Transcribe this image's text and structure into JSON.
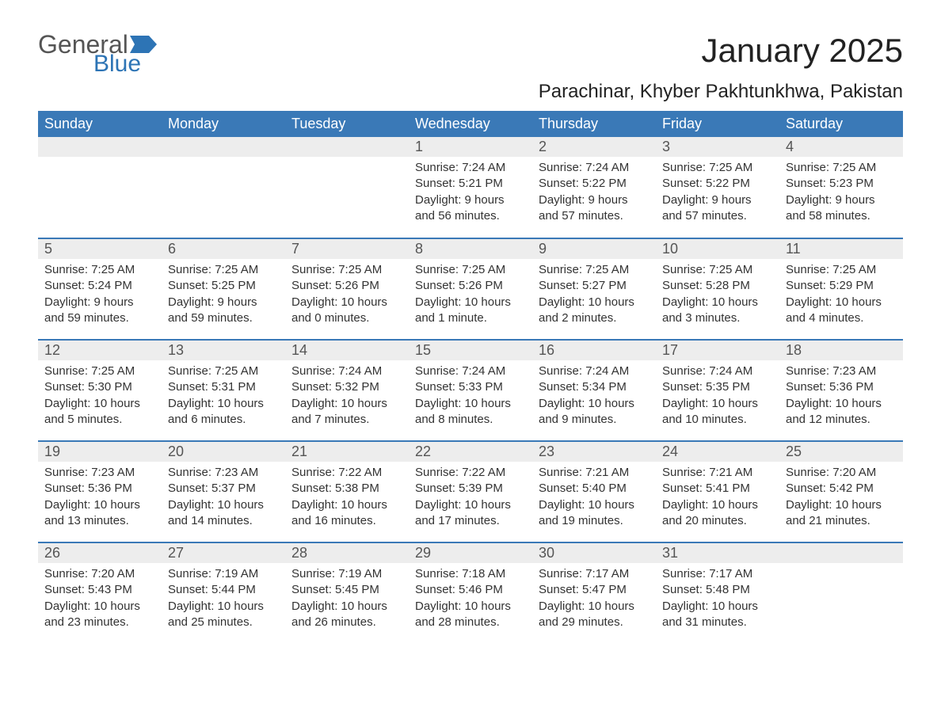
{
  "brand": {
    "word1": "General",
    "word2": "Blue",
    "flag_color": "#2d74b5"
  },
  "title": "January 2025",
  "location": "Parachinar, Khyber Pakhtunkhwa, Pakistan",
  "colors": {
    "header_bg": "#3a79b7",
    "header_text": "#ffffff",
    "daynum_bg": "#ededed",
    "daynum_text": "#555555",
    "body_text": "#333333",
    "border": "#3a79b7",
    "page_bg": "#ffffff"
  },
  "typography": {
    "title_size_pt": 32,
    "location_size_pt": 18,
    "header_size_pt": 14,
    "daynum_size_pt": 14,
    "body_size_pt": 11
  },
  "day_headers": [
    "Sunday",
    "Monday",
    "Tuesday",
    "Wednesday",
    "Thursday",
    "Friday",
    "Saturday"
  ],
  "weeks": [
    [
      null,
      null,
      null,
      {
        "n": "1",
        "sr": "Sunrise: 7:24 AM",
        "ss": "Sunset: 5:21 PM",
        "dl": "Daylight: 9 hours and 56 minutes."
      },
      {
        "n": "2",
        "sr": "Sunrise: 7:24 AM",
        "ss": "Sunset: 5:22 PM",
        "dl": "Daylight: 9 hours and 57 minutes."
      },
      {
        "n": "3",
        "sr": "Sunrise: 7:25 AM",
        "ss": "Sunset: 5:22 PM",
        "dl": "Daylight: 9 hours and 57 minutes."
      },
      {
        "n": "4",
        "sr": "Sunrise: 7:25 AM",
        "ss": "Sunset: 5:23 PM",
        "dl": "Daylight: 9 hours and 58 minutes."
      }
    ],
    [
      {
        "n": "5",
        "sr": "Sunrise: 7:25 AM",
        "ss": "Sunset: 5:24 PM",
        "dl": "Daylight: 9 hours and 59 minutes."
      },
      {
        "n": "6",
        "sr": "Sunrise: 7:25 AM",
        "ss": "Sunset: 5:25 PM",
        "dl": "Daylight: 9 hours and 59 minutes."
      },
      {
        "n": "7",
        "sr": "Sunrise: 7:25 AM",
        "ss": "Sunset: 5:26 PM",
        "dl": "Daylight: 10 hours and 0 minutes."
      },
      {
        "n": "8",
        "sr": "Sunrise: 7:25 AM",
        "ss": "Sunset: 5:26 PM",
        "dl": "Daylight: 10 hours and 1 minute."
      },
      {
        "n": "9",
        "sr": "Sunrise: 7:25 AM",
        "ss": "Sunset: 5:27 PM",
        "dl": "Daylight: 10 hours and 2 minutes."
      },
      {
        "n": "10",
        "sr": "Sunrise: 7:25 AM",
        "ss": "Sunset: 5:28 PM",
        "dl": "Daylight: 10 hours and 3 minutes."
      },
      {
        "n": "11",
        "sr": "Sunrise: 7:25 AM",
        "ss": "Sunset: 5:29 PM",
        "dl": "Daylight: 10 hours and 4 minutes."
      }
    ],
    [
      {
        "n": "12",
        "sr": "Sunrise: 7:25 AM",
        "ss": "Sunset: 5:30 PM",
        "dl": "Daylight: 10 hours and 5 minutes."
      },
      {
        "n": "13",
        "sr": "Sunrise: 7:25 AM",
        "ss": "Sunset: 5:31 PM",
        "dl": "Daylight: 10 hours and 6 minutes."
      },
      {
        "n": "14",
        "sr": "Sunrise: 7:24 AM",
        "ss": "Sunset: 5:32 PM",
        "dl": "Daylight: 10 hours and 7 minutes."
      },
      {
        "n": "15",
        "sr": "Sunrise: 7:24 AM",
        "ss": "Sunset: 5:33 PM",
        "dl": "Daylight: 10 hours and 8 minutes."
      },
      {
        "n": "16",
        "sr": "Sunrise: 7:24 AM",
        "ss": "Sunset: 5:34 PM",
        "dl": "Daylight: 10 hours and 9 minutes."
      },
      {
        "n": "17",
        "sr": "Sunrise: 7:24 AM",
        "ss": "Sunset: 5:35 PM",
        "dl": "Daylight: 10 hours and 10 minutes."
      },
      {
        "n": "18",
        "sr": "Sunrise: 7:23 AM",
        "ss": "Sunset: 5:36 PM",
        "dl": "Daylight: 10 hours and 12 minutes."
      }
    ],
    [
      {
        "n": "19",
        "sr": "Sunrise: 7:23 AM",
        "ss": "Sunset: 5:36 PM",
        "dl": "Daylight: 10 hours and 13 minutes."
      },
      {
        "n": "20",
        "sr": "Sunrise: 7:23 AM",
        "ss": "Sunset: 5:37 PM",
        "dl": "Daylight: 10 hours and 14 minutes."
      },
      {
        "n": "21",
        "sr": "Sunrise: 7:22 AM",
        "ss": "Sunset: 5:38 PM",
        "dl": "Daylight: 10 hours and 16 minutes."
      },
      {
        "n": "22",
        "sr": "Sunrise: 7:22 AM",
        "ss": "Sunset: 5:39 PM",
        "dl": "Daylight: 10 hours and 17 minutes."
      },
      {
        "n": "23",
        "sr": "Sunrise: 7:21 AM",
        "ss": "Sunset: 5:40 PM",
        "dl": "Daylight: 10 hours and 19 minutes."
      },
      {
        "n": "24",
        "sr": "Sunrise: 7:21 AM",
        "ss": "Sunset: 5:41 PM",
        "dl": "Daylight: 10 hours and 20 minutes."
      },
      {
        "n": "25",
        "sr": "Sunrise: 7:20 AM",
        "ss": "Sunset: 5:42 PM",
        "dl": "Daylight: 10 hours and 21 minutes."
      }
    ],
    [
      {
        "n": "26",
        "sr": "Sunrise: 7:20 AM",
        "ss": "Sunset: 5:43 PM",
        "dl": "Daylight: 10 hours and 23 minutes."
      },
      {
        "n": "27",
        "sr": "Sunrise: 7:19 AM",
        "ss": "Sunset: 5:44 PM",
        "dl": "Daylight: 10 hours and 25 minutes."
      },
      {
        "n": "28",
        "sr": "Sunrise: 7:19 AM",
        "ss": "Sunset: 5:45 PM",
        "dl": "Daylight: 10 hours and 26 minutes."
      },
      {
        "n": "29",
        "sr": "Sunrise: 7:18 AM",
        "ss": "Sunset: 5:46 PM",
        "dl": "Daylight: 10 hours and 28 minutes."
      },
      {
        "n": "30",
        "sr": "Sunrise: 7:17 AM",
        "ss": "Sunset: 5:47 PM",
        "dl": "Daylight: 10 hours and 29 minutes."
      },
      {
        "n": "31",
        "sr": "Sunrise: 7:17 AM",
        "ss": "Sunset: 5:48 PM",
        "dl": "Daylight: 10 hours and 31 minutes."
      },
      null
    ]
  ]
}
